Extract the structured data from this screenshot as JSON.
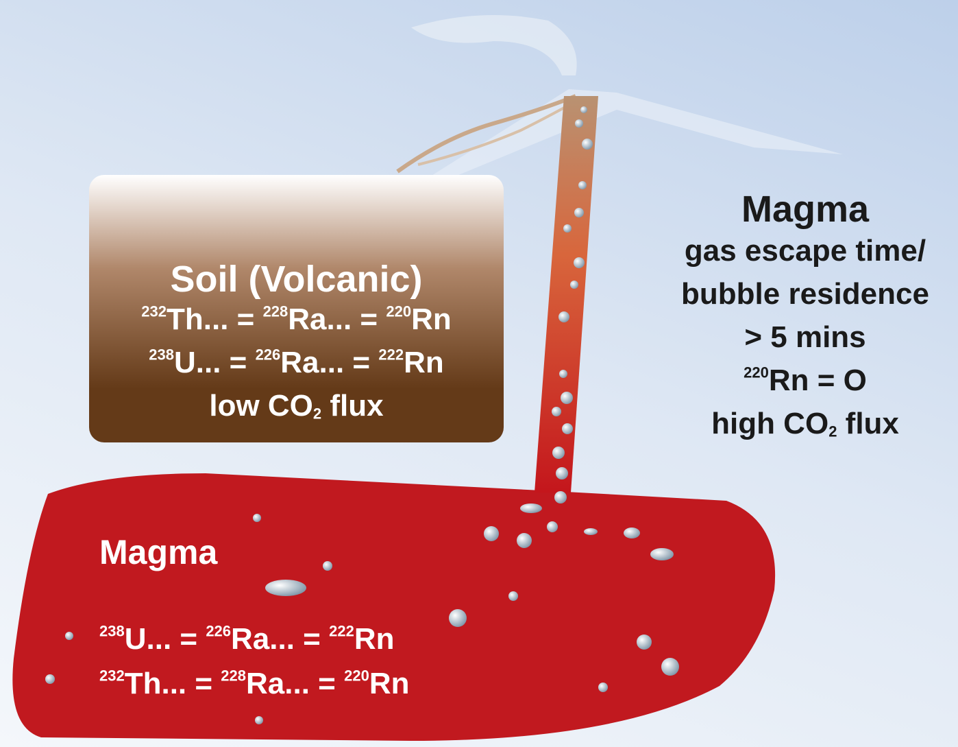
{
  "soil": {
    "title": "Soil (Volcanic)",
    "lines": [
      [
        {
          "sup": "232"
        },
        {
          "text": "Th... = "
        },
        {
          "sup": "228"
        },
        {
          "text": "Ra... = "
        },
        {
          "sup": "220"
        },
        {
          "text": "Rn"
        }
      ],
      [
        {
          "sup": "238"
        },
        {
          "text": "U... = "
        },
        {
          "sup": "226"
        },
        {
          "text": "Ra... = "
        },
        {
          "sup": "222"
        },
        {
          "text": "Rn"
        }
      ],
      [
        {
          "text": "low CO"
        },
        {
          "sub": "2"
        },
        {
          "text": " flux"
        }
      ]
    ]
  },
  "magma_chamber": {
    "title": "Magma",
    "lines": [
      [
        {
          "sup": "238"
        },
        {
          "text": "U... = "
        },
        {
          "sup": "226"
        },
        {
          "text": "Ra... = "
        },
        {
          "sup": "222"
        },
        {
          "text": "Rn"
        }
      ],
      [
        {
          "sup": "232"
        },
        {
          "text": "Th... = "
        },
        {
          "sup": "228"
        },
        {
          "text": "Ra... = "
        },
        {
          "sup": "220"
        },
        {
          "text": "Rn"
        }
      ]
    ]
  },
  "conduit": {
    "title": "Magma",
    "lines": [
      [
        {
          "text": "gas escape time/"
        }
      ],
      [
        {
          "text": "bubble residence"
        }
      ],
      [
        {
          "text": "> 5 mins"
        }
      ],
      [
        {
          "sup": "220"
        },
        {
          "text": "Rn = O"
        }
      ],
      [
        {
          "text": "high CO"
        },
        {
          "sub": "2"
        },
        {
          "text": " flux"
        }
      ]
    ]
  }
}
